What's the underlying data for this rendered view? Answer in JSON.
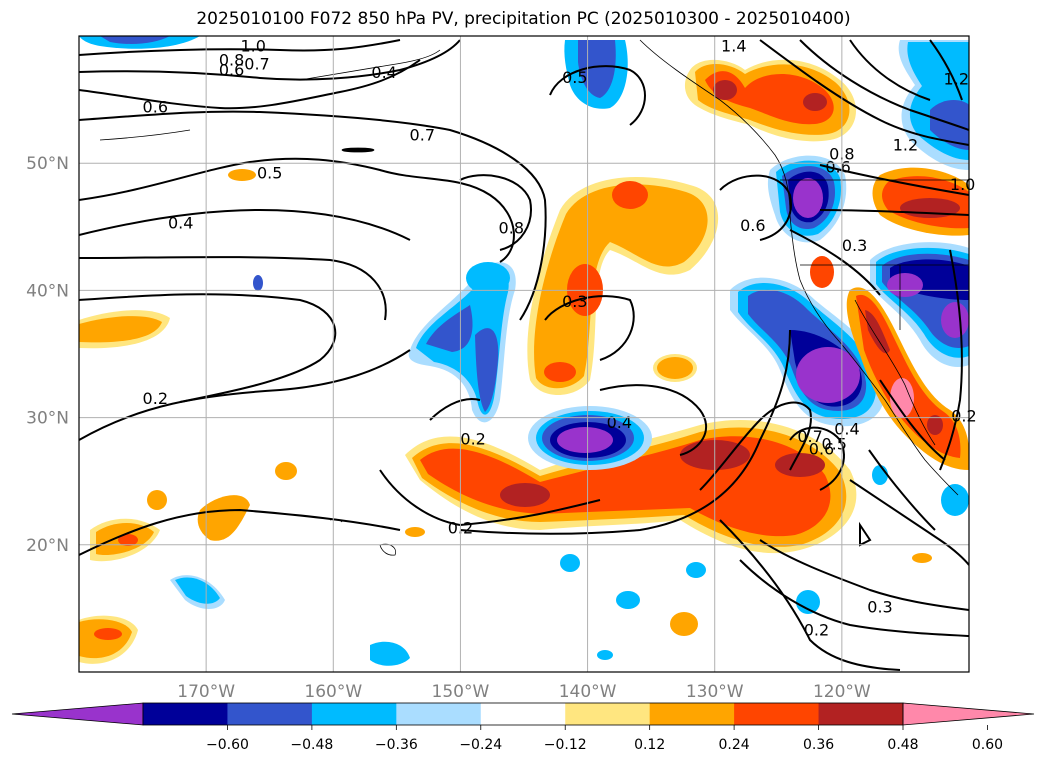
{
  "chart_data": {
    "type": "heatmap",
    "title": "2025010100 F072 850 hPa PV, precipitation PC (2025010300 - 2025010400)",
    "map_extent": {
      "lon": [
        -180,
        -110
      ],
      "lat": [
        10,
        60
      ]
    },
    "grid": true,
    "lat_ticks": [
      {
        "value": 50,
        "label": "50°N"
      },
      {
        "value": 40,
        "label": "40°N"
      },
      {
        "value": 30,
        "label": "30°N"
      },
      {
        "value": 20,
        "label": "20°N"
      }
    ],
    "lon_ticks": [
      {
        "value": -170,
        "label": "170°W"
      },
      {
        "value": -160,
        "label": "160°W"
      },
      {
        "value": -150,
        "label": "150°W"
      },
      {
        "value": -140,
        "label": "140°W"
      },
      {
        "value": -130,
        "label": "130°W"
      },
      {
        "value": -120,
        "label": "120°W"
      }
    ],
    "colorbar": {
      "orientation": "horizontal",
      "extend": "both",
      "levels": [
        -0.6,
        -0.48,
        -0.36,
        -0.24,
        -0.12,
        0.12,
        0.24,
        0.36,
        0.48,
        0.6
      ],
      "tick_labels": [
        "−0.60",
        "−0.48",
        "−0.36",
        "−0.24",
        "−0.12",
        "0.12",
        "0.24",
        "0.36",
        "0.48",
        "0.60"
      ],
      "colors": [
        "#9933cc",
        "#000099",
        "#3355cc",
        "#00bbff",
        "#aaddff",
        "#ffffff",
        "#ffe680",
        "#ffa500",
        "#ff4500",
        "#b22222",
        "#ff88aa"
      ]
    },
    "contour_labels": [
      {
        "text": "1.0",
        "lon": -166.3,
        "lat": 59.1
      },
      {
        "text": "0.8",
        "lon": -168.0,
        "lat": 58.0
      },
      {
        "text": "0.7",
        "lon": -166.0,
        "lat": 57.7
      },
      {
        "text": "0.6",
        "lon": -168.0,
        "lat": 57.2
      },
      {
        "text": "0.4",
        "lon": -156.0,
        "lat": 57.0
      },
      {
        "text": "0.5",
        "lon": -141.0,
        "lat": 56.6
      },
      {
        "text": "1.4",
        "lon": -128.5,
        "lat": 59.1
      },
      {
        "text": "1.2",
        "lon": -111.0,
        "lat": 56.5
      },
      {
        "text": "0.6",
        "lon": -174.0,
        "lat": 54.3
      },
      {
        "text": "0.7",
        "lon": -153.0,
        "lat": 52.1
      },
      {
        "text": "1.2",
        "lon": -115.0,
        "lat": 51.3
      },
      {
        "text": "0.8",
        "lon": -120.0,
        "lat": 50.6
      },
      {
        "text": "0.6",
        "lon": -120.3,
        "lat": 49.6
      },
      {
        "text": "1.0",
        "lon": -110.5,
        "lat": 48.2
      },
      {
        "text": "0.5",
        "lon": -165.0,
        "lat": 49.1
      },
      {
        "text": "0.4",
        "lon": -172.0,
        "lat": 45.2
      },
      {
        "text": "0.8",
        "lon": -146.0,
        "lat": 44.8
      },
      {
        "text": "0.6",
        "lon": -127.0,
        "lat": 45.0
      },
      {
        "text": "0.3",
        "lon": -119.0,
        "lat": 43.4
      },
      {
        "text": "0.3",
        "lon": -141.0,
        "lat": 39.0
      },
      {
        "text": "0.2",
        "lon": -174.0,
        "lat": 31.4
      },
      {
        "text": "0.4",
        "lon": -137.5,
        "lat": 29.5
      },
      {
        "text": "0.4",
        "lon": -119.6,
        "lat": 29.0
      },
      {
        "text": "0.2",
        "lon": -110.4,
        "lat": 30.0
      },
      {
        "text": "0.2",
        "lon": -149.0,
        "lat": 28.2
      },
      {
        "text": "0.7",
        "lon": -122.5,
        "lat": 28.4
      },
      {
        "text": "0.6",
        "lon": -121.6,
        "lat": 27.4
      },
      {
        "text": "0.5",
        "lon": -120.6,
        "lat": 27.8
      },
      {
        "text": "0.2",
        "lon": -150.0,
        "lat": 21.2
      },
      {
        "text": "0.3",
        "lon": -117.0,
        "lat": 15.0
      },
      {
        "text": "0.2",
        "lon": -122.0,
        "lat": 13.2
      }
    ]
  }
}
